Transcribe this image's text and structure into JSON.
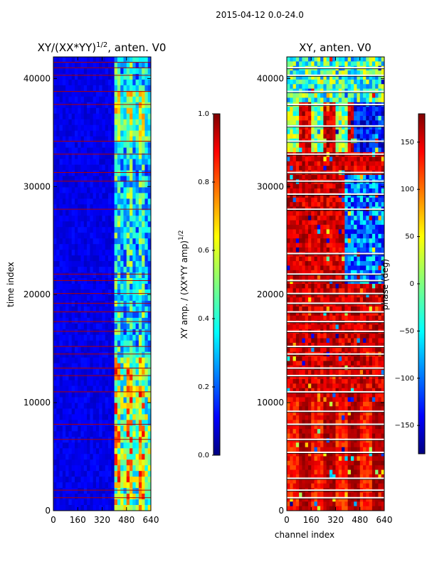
{
  "figure": {
    "suptitle": "2015-04-12 0.0-24.0",
    "colors": {
      "background": "#ffffff",
      "axes": "#000000",
      "flag_line": "#b00000",
      "cmap": [
        "#00007f",
        "#0000ff",
        "#007fff",
        "#00ffff",
        "#7fff7f",
        "#ffff00",
        "#ff7f00",
        "#ff0000",
        "#7f0000"
      ]
    }
  },
  "chart_data": [
    {
      "id": "amp",
      "type": "heatmap",
      "title_main": "XY/(XX*YY)",
      "title_sup": "1/2",
      "title_tail": ", anten. V0",
      "xlabel": "",
      "ylabel": "time index",
      "xlim": [
        0,
        640
      ],
      "ylim": [
        0,
        42000
      ],
      "xticks": [
        0,
        160,
        320,
        480,
        640
      ],
      "yticks": [
        0,
        10000,
        20000,
        30000,
        40000
      ],
      "colorbar": {
        "label_main": "XY amp. / (XX*YY amp)",
        "label_sup": "1/2",
        "range": [
          0.0,
          1.0
        ],
        "ticks": [
          "0.0",
          "0.2",
          "0.4",
          "0.6",
          "0.8",
          "1.0"
        ],
        "tick_values": [
          0.0,
          0.2,
          0.4,
          0.6,
          0.8,
          1.0
        ]
      },
      "flagged_rows": [
        1200,
        1900,
        6600,
        8000,
        11000,
        12500,
        13200,
        14500,
        15200,
        16600,
        17500,
        18400,
        19200,
        20100,
        21300,
        21900,
        27900,
        30500,
        31300,
        33000,
        34200,
        37600,
        38800,
        40300,
        41000,
        41500
      ],
      "bright_band_channels": [
        400,
        640
      ],
      "notes": "low amplitude (~0.05-0.15) for channels 0-400; higher amplitude (0.4-1.0) for channels 400-640"
    },
    {
      "id": "phase",
      "type": "heatmap",
      "title_main": "XY, anten. V0",
      "xlabel": "channel index",
      "ylabel": "",
      "xlim": [
        0,
        640
      ],
      "ylim": [
        0,
        42000
      ],
      "xticks": [
        0,
        160,
        320,
        480,
        640
      ],
      "yticks": [
        0,
        10000,
        20000,
        30000,
        40000
      ],
      "colorbar": {
        "label_main": "phase (deg)",
        "range": [
          -180,
          180
        ],
        "ticks": [
          "−150",
          "−100",
          "−50",
          "0",
          "50",
          "100",
          "150"
        ],
        "tick_values": [
          -150,
          -100,
          -50,
          0,
          50,
          100,
          150
        ]
      },
      "white_gaps": [
        1200,
        1900,
        3000,
        5400,
        6600,
        8000,
        9200,
        11000,
        12500,
        13200,
        14500,
        15200,
        16600,
        17500,
        18400,
        19200,
        20100,
        21300,
        21900,
        23800,
        27900,
        29300,
        30500,
        31300,
        33000,
        34200,
        35600,
        37600,
        38800,
        40300,
        41000
      ],
      "notes": "phase mostly 100-180 deg (orange/red), with blue bands near channels 100-400 at mid times and cyan/blue region in upper channels"
    }
  ]
}
